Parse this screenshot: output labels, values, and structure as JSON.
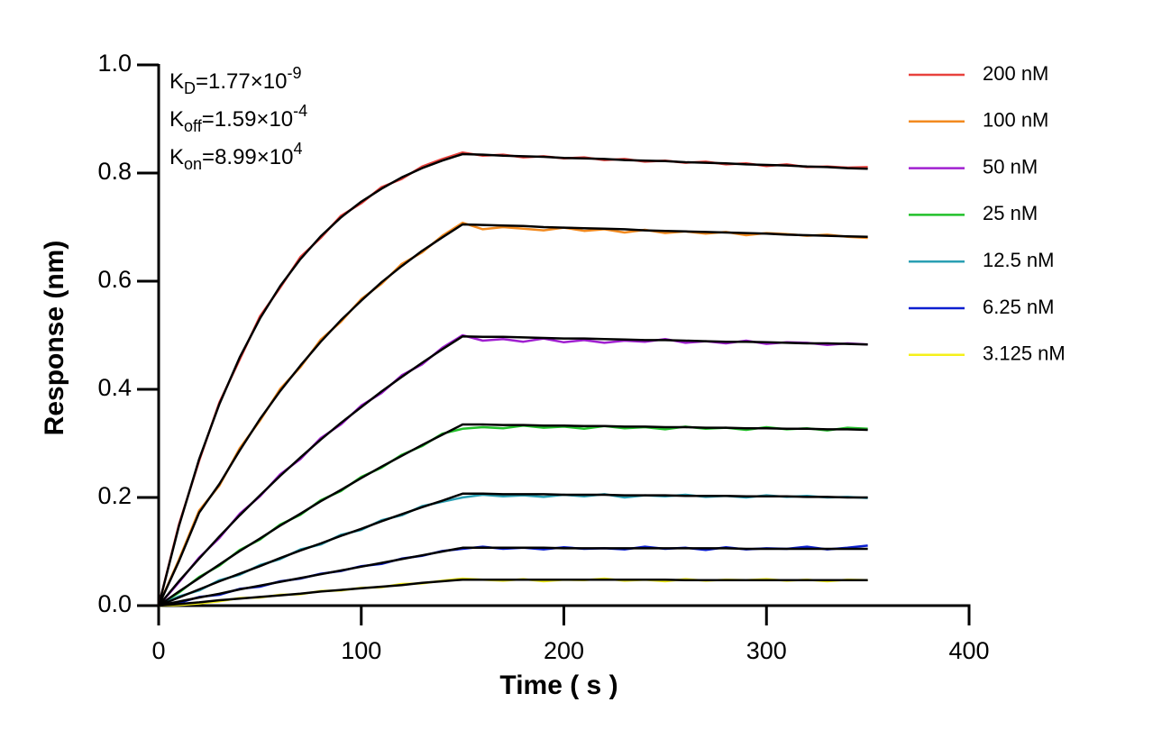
{
  "chart_data": {
    "type": "line",
    "xlabel": "Time ( s )",
    "ylabel": "Response (nm)",
    "annotations": [
      {
        "symbol": "K",
        "subscript": "D",
        "text": "=1.77×10",
        "exponent": "-9"
      },
      {
        "symbol": "K",
        "subscript": "off",
        "text": "=1.59×10",
        "exponent": "-4"
      },
      {
        "symbol": "K",
        "subscript": "on",
        "text": "=8.99×10",
        "exponent": "4"
      }
    ],
    "xlim": [
      0,
      400
    ],
    "xticks": [
      0,
      100,
      200,
      300,
      400
    ],
    "ylim": [
      0,
      1.0
    ],
    "yticks": [
      {
        "value": 0,
        "label": "0.0"
      },
      {
        "value": 0.2,
        "label": "0.2"
      },
      {
        "value": 0.4,
        "label": "0.4"
      },
      {
        "value": 0.6,
        "label": "0.6"
      },
      {
        "value": 0.8,
        "label": "0.8"
      },
      {
        "value": 1.0,
        "label": "1.0"
      }
    ],
    "legend": "upper right",
    "x": [
      0,
      10,
      20,
      30,
      40,
      50,
      60,
      70,
      80,
      90,
      100,
      110,
      120,
      130,
      140,
      150,
      160,
      170,
      180,
      190,
      200,
      210,
      220,
      230,
      240,
      250,
      260,
      270,
      280,
      290,
      300,
      310,
      320,
      330,
      340,
      350
    ],
    "series": [
      {
        "name": "200 nM",
        "color": "#e8413c",
        "values": [
          0,
          0.15,
          0.268,
          0.376,
          0.455,
          0.535,
          0.588,
          0.645,
          0.68,
          0.721,
          0.744,
          0.774,
          0.789,
          0.812,
          0.826,
          0.838,
          0.832,
          0.834,
          0.829,
          0.831,
          0.827,
          0.829,
          0.824,
          0.826,
          0.821,
          0.823,
          0.819,
          0.821,
          0.816,
          0.818,
          0.813,
          0.816,
          0.811,
          0.812,
          0.81,
          0.811
        ]
      },
      {
        "name": "100 nM",
        "color": "#f28a1f",
        "values": [
          0,
          0.085,
          0.176,
          0.222,
          0.291,
          0.342,
          0.401,
          0.441,
          0.492,
          0.525,
          0.567,
          0.595,
          0.632,
          0.653,
          0.684,
          0.708,
          0.696,
          0.7,
          0.697,
          0.694,
          0.699,
          0.693,
          0.696,
          0.69,
          0.695,
          0.689,
          0.692,
          0.688,
          0.691,
          0.685,
          0.689,
          0.687,
          0.684,
          0.686,
          0.682,
          0.68
        ]
      },
      {
        "name": "50 nM",
        "color": "#a020d0",
        "values": [
          0,
          0.043,
          0.089,
          0.125,
          0.17,
          0.202,
          0.243,
          0.271,
          0.31,
          0.335,
          0.37,
          0.393,
          0.426,
          0.446,
          0.477,
          0.5,
          0.49,
          0.493,
          0.488,
          0.494,
          0.487,
          0.491,
          0.486,
          0.49,
          0.488,
          0.493,
          0.486,
          0.489,
          0.485,
          0.49,
          0.484,
          0.487,
          0.486,
          0.482,
          0.485,
          0.483
        ]
      },
      {
        "name": "25 nM",
        "color": "#22c02a",
        "values": [
          0,
          0.024,
          0.053,
          0.074,
          0.103,
          0.122,
          0.15,
          0.168,
          0.195,
          0.212,
          0.238,
          0.255,
          0.279,
          0.295,
          0.318,
          0.327,
          0.33,
          0.328,
          0.333,
          0.329,
          0.331,
          0.327,
          0.332,
          0.328,
          0.33,
          0.326,
          0.331,
          0.327,
          0.329,
          0.325,
          0.33,
          0.326,
          0.328,
          0.324,
          0.329,
          0.327
        ]
      },
      {
        "name": "12.5 nM",
        "color": "#2a9fb3",
        "values": [
          0,
          0.017,
          0.028,
          0.047,
          0.057,
          0.075,
          0.086,
          0.104,
          0.113,
          0.131,
          0.14,
          0.158,
          0.167,
          0.184,
          0.192,
          0.2,
          0.205,
          0.202,
          0.204,
          0.201,
          0.205,
          0.202,
          0.206,
          0.2,
          0.204,
          0.202,
          0.205,
          0.201,
          0.203,
          0.2,
          0.204,
          0.201,
          0.203,
          0.2,
          0.201,
          0.199
        ]
      },
      {
        "name": "6.25 nM",
        "color": "#0c1fd0",
        "values": [
          0,
          0.005,
          0.016,
          0.02,
          0.031,
          0.035,
          0.045,
          0.05,
          0.059,
          0.064,
          0.073,
          0.077,
          0.087,
          0.092,
          0.101,
          0.105,
          0.109,
          0.105,
          0.107,
          0.104,
          0.108,
          0.105,
          0.106,
          0.104,
          0.109,
          0.105,
          0.107,
          0.103,
          0.108,
          0.104,
          0.106,
          0.105,
          0.109,
          0.104,
          0.107,
          0.111
        ]
      },
      {
        "name": "3.125 nM",
        "color": "#f5f01a",
        "values": [
          0,
          0.001,
          0.004,
          0.008,
          0.014,
          0.015,
          0.02,
          0.021,
          0.027,
          0.028,
          0.033,
          0.034,
          0.04,
          0.041,
          0.046,
          0.05,
          0.048,
          0.046,
          0.049,
          0.045,
          0.048,
          0.047,
          0.05,
          0.046,
          0.048,
          0.045,
          0.049,
          0.046,
          0.048,
          0.047,
          0.049,
          0.046,
          0.048,
          0.045,
          0.048,
          0.047
        ]
      }
    ],
    "fits": [
      {
        "color": "#000000",
        "values": [
          0,
          0.147,
          0.271,
          0.373,
          0.459,
          0.531,
          0.591,
          0.641,
          0.683,
          0.718,
          0.747,
          0.771,
          0.792,
          0.809,
          0.823,
          0.835,
          0.834,
          0.832,
          0.831,
          0.83,
          0.828,
          0.827,
          0.826,
          0.824,
          0.823,
          0.822,
          0.82,
          0.819,
          0.818,
          0.816,
          0.815,
          0.814,
          0.812,
          0.811,
          0.809,
          0.808
        ]
      },
      {
        "color": "#000000",
        "values": [
          0,
          0.082,
          0.172,
          0.225,
          0.287,
          0.345,
          0.397,
          0.444,
          0.488,
          0.528,
          0.564,
          0.598,
          0.628,
          0.656,
          0.681,
          0.705,
          0.704,
          0.703,
          0.702,
          0.7,
          0.699,
          0.698,
          0.697,
          0.696,
          0.694,
          0.693,
          0.692,
          0.691,
          0.69,
          0.689,
          0.688,
          0.686,
          0.685,
          0.684,
          0.683,
          0.682
        ]
      },
      {
        "color": "#000000",
        "values": [
          0,
          0.045,
          0.087,
          0.128,
          0.167,
          0.204,
          0.24,
          0.274,
          0.307,
          0.338,
          0.367,
          0.396,
          0.423,
          0.449,
          0.474,
          0.498,
          0.497,
          0.497,
          0.496,
          0.495,
          0.494,
          0.494,
          0.493,
          0.492,
          0.491,
          0.491,
          0.49,
          0.489,
          0.488,
          0.488,
          0.487,
          0.486,
          0.485,
          0.485,
          0.484,
          0.483
        ]
      },
      {
        "color": "#000000",
        "values": [
          0,
          0.026,
          0.051,
          0.076,
          0.101,
          0.124,
          0.148,
          0.17,
          0.193,
          0.214,
          0.236,
          0.257,
          0.277,
          0.297,
          0.316,
          0.335,
          0.335,
          0.334,
          0.334,
          0.333,
          0.333,
          0.332,
          0.332,
          0.331,
          0.331,
          0.33,
          0.33,
          0.329,
          0.329,
          0.328,
          0.328,
          0.327,
          0.327,
          0.326,
          0.326,
          0.325
        ]
      },
      {
        "color": "#000000",
        "values": [
          0,
          0.015,
          0.03,
          0.045,
          0.059,
          0.073,
          0.088,
          0.102,
          0.115,
          0.129,
          0.142,
          0.156,
          0.169,
          0.182,
          0.194,
          0.207,
          0.207,
          0.206,
          0.206,
          0.206,
          0.205,
          0.205,
          0.205,
          0.204,
          0.204,
          0.204,
          0.203,
          0.203,
          0.203,
          0.202,
          0.202,
          0.202,
          0.201,
          0.201,
          0.2,
          0.2
        ]
      },
      {
        "color": "#000000",
        "values": [
          0,
          0.0075,
          0.015,
          0.022,
          0.03,
          0.037,
          0.044,
          0.051,
          0.058,
          0.065,
          0.072,
          0.079,
          0.086,
          0.093,
          0.1,
          0.107,
          0.107,
          0.107,
          0.107,
          0.107,
          0.106,
          0.106,
          0.106,
          0.106,
          0.106,
          0.106,
          0.106,
          0.106,
          0.106,
          0.105,
          0.105,
          0.105,
          0.105,
          0.105,
          0.105,
          0.105
        ]
      },
      {
        "color": "#000000",
        "values": [
          0,
          0.003,
          0.006,
          0.01,
          0.013,
          0.016,
          0.019,
          0.022,
          0.026,
          0.029,
          0.032,
          0.035,
          0.038,
          0.042,
          0.045,
          0.048,
          0.048,
          0.048,
          0.048,
          0.048,
          0.048,
          0.048,
          0.048,
          0.048,
          0.048,
          0.048,
          0.047,
          0.047,
          0.047,
          0.047,
          0.047,
          0.047,
          0.047,
          0.047,
          0.047,
          0.047
        ]
      }
    ]
  }
}
